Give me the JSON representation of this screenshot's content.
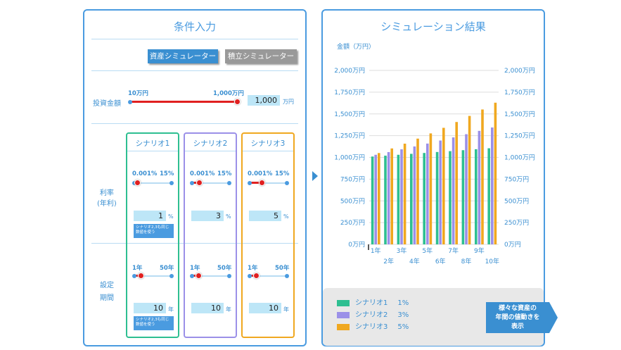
{
  "left": {
    "title": "条件入力",
    "buttons": {
      "asset": "資産シミュレーター",
      "saving": "積立シミュレーター"
    },
    "investment": {
      "label": "投資金額",
      "min": "10万円",
      "max": "1,000万円",
      "value": "1,000",
      "unit": "万円",
      "slider_fraction": 1.0
    },
    "rate_label": "利率\n(年利)",
    "period_label": "設定\n期間",
    "scenarios": [
      {
        "name": "シナリオ1",
        "color": "#2ebf91",
        "rate_min": "0.001%",
        "rate_max": "15%",
        "rate": "1",
        "rate_unit": "%",
        "rate_fraction": 0.07,
        "note": "シナリオ2,3も同じ数値を使う",
        "year_min": "1年",
        "year_max": "50年",
        "years": "10",
        "year_unit": "年",
        "year_fraction": 0.18,
        "note2": "シナリオ2,3も同じ数値を使う"
      },
      {
        "name": "シナリオ2",
        "color": "#9b90e8",
        "rate_min": "0.001%",
        "rate_max": "15%",
        "rate": "3",
        "rate_unit": "%",
        "rate_fraction": 0.2,
        "years": "10",
        "year_unit": "年",
        "year_min": "1年",
        "year_max": "50年",
        "year_fraction": 0.18
      },
      {
        "name": "シナリオ3",
        "color": "#f0a820",
        "rate_min": "0.001%",
        "rate_max": "15%",
        "rate": "5",
        "rate_unit": "%",
        "rate_fraction": 0.33,
        "years": "10",
        "year_unit": "年",
        "year_min": "1年",
        "year_max": "50年",
        "year_fraction": 0.18
      }
    ]
  },
  "right": {
    "title": "シミュレーション結果",
    "callout": "様々な資産の\n年間の値動きを\n表示"
  },
  "chart_data": {
    "type": "bar",
    "ylabel": "金額（万円）",
    "ylim": [
      0,
      2000
    ],
    "yticks": [
      "0万円",
      "250万円",
      "500万円",
      "750万円",
      "1,000万円",
      "1,250万円",
      "1,500万円",
      "1,750万円",
      "2,000万円"
    ],
    "categories": [
      "1年",
      "2年",
      "3年",
      "4年",
      "5年",
      "6年",
      "7年",
      "8年",
      "9年",
      "10年"
    ],
    "series": [
      {
        "name": "シナリオ1",
        "label": "1%",
        "color": "#2ebf91",
        "values": [
          1010,
          1020,
          1030,
          1041,
          1051,
          1062,
          1072,
          1083,
          1094,
          1105
        ]
      },
      {
        "name": "シナリオ2",
        "label": "3%",
        "color": "#9b90e8",
        "values": [
          1030,
          1061,
          1093,
          1126,
          1159,
          1194,
          1230,
          1267,
          1305,
          1344
        ]
      },
      {
        "name": "シナリオ3",
        "label": "5%",
        "color": "#f0a820",
        "values": [
          1050,
          1103,
          1158,
          1216,
          1276,
          1340,
          1407,
          1477,
          1551,
          1629
        ]
      }
    ]
  }
}
